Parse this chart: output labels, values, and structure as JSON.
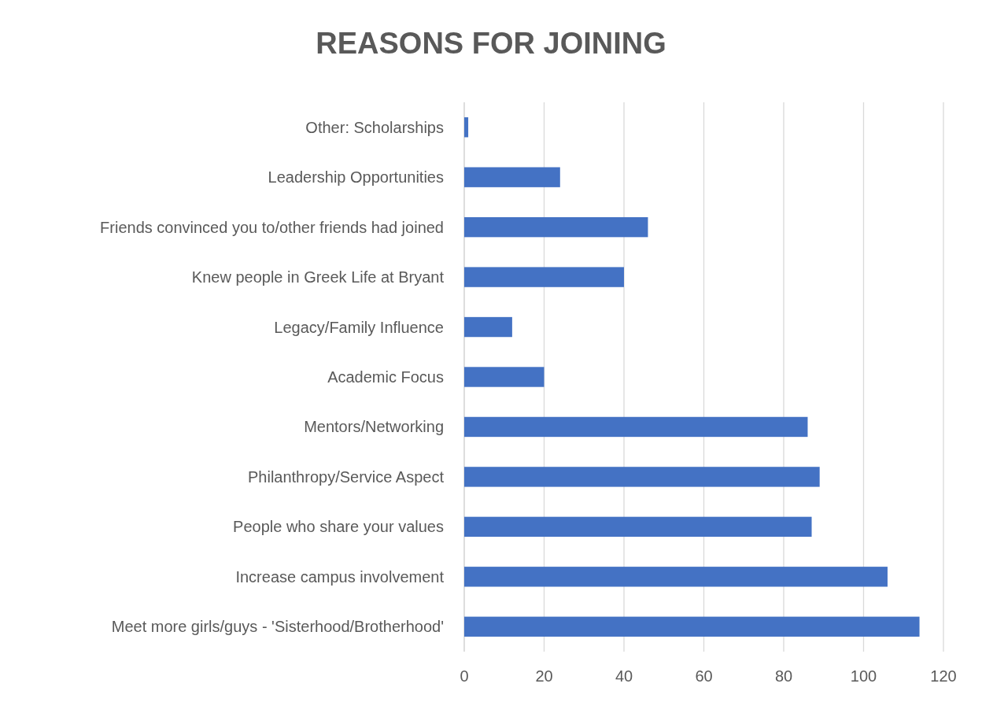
{
  "chart_data": {
    "type": "bar",
    "orientation": "horizontal",
    "title": "REASONS FOR JOINING",
    "categories": [
      "Other: Scholarships",
      "Leadership Opportunities",
      "Friends convinced you to/other friends had joined",
      "Knew people in Greek Life at Bryant",
      "Legacy/Family Influence",
      "Academic Focus",
      "Mentors/Networking",
      "Philanthropy/Service Aspect",
      "People who share your values",
      "Increase campus involvement",
      "Meet more girls/guys - 'Sisterhood/Brotherhood'"
    ],
    "values": [
      1,
      24,
      46,
      40,
      12,
      20,
      86,
      89,
      87,
      106,
      114
    ],
    "color": "#4472c4",
    "xlim": [
      0,
      120
    ],
    "xticks": [
      0,
      20,
      40,
      60,
      80,
      100,
      120
    ],
    "grid": "x"
  }
}
